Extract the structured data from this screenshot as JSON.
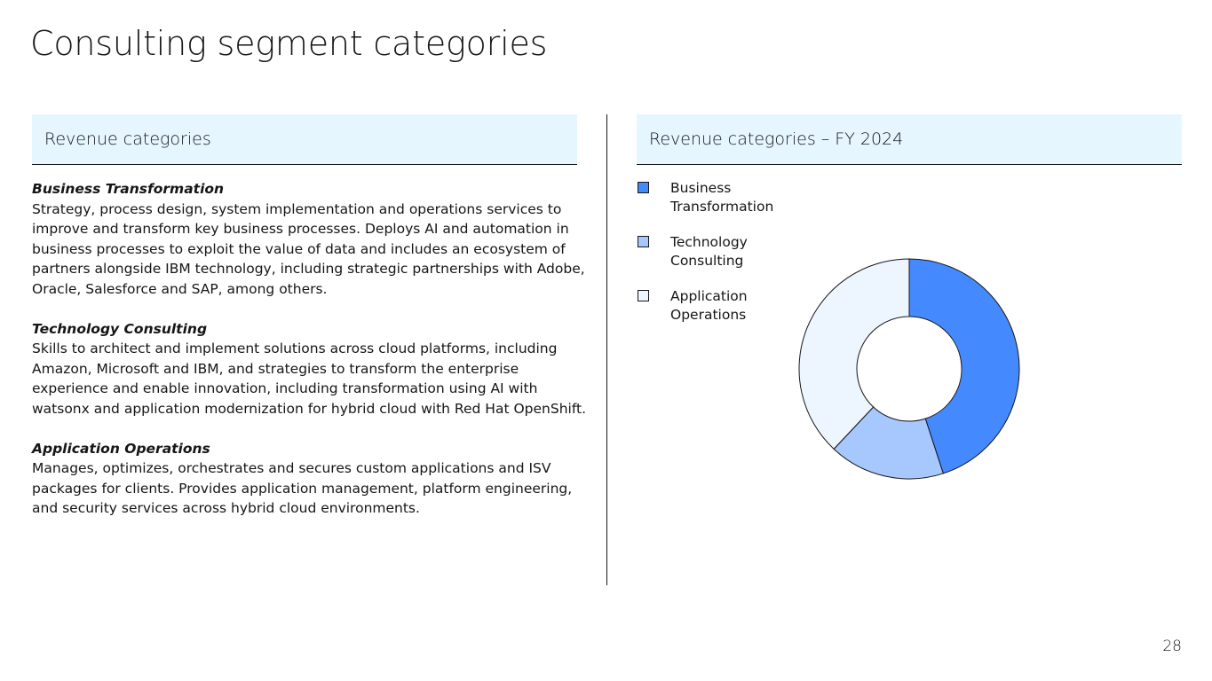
{
  "slide": {
    "title": "Consulting segment categories",
    "page_number": "28"
  },
  "left_panel": {
    "header": "Revenue categories",
    "categories": [
      {
        "name": "Business Transformation",
        "description": "Strategy, process design, system implementation and operations services to improve and transform key business processes. Deploys AI and automation in business processes to exploit the value of data and includes an ecosystem of partners alongside IBM technology, including strategic partnerships with Adobe, Oracle, Salesforce and SAP, among others."
      },
      {
        "name": "Technology Consulting",
        "description": "Skills to architect and implement solutions across cloud platforms, including Amazon, Microsoft and IBM, and strategies to transform the enterprise experience and enable innovation, including transformation using AI with watsonx and application modernization for hybrid cloud with Red Hat OpenShift."
      },
      {
        "name": "Application Operations",
        "description": "Manages, optimizes, orchestrates and secures custom applications and ISV packages for clients. Provides application management, platform engineering, and security services across hybrid cloud environments."
      }
    ]
  },
  "right_panel": {
    "header": "Revenue categories – FY 2024"
  },
  "chart_data": {
    "type": "pie",
    "variant": "donut",
    "title": "Revenue categories – FY 2024",
    "legend_position": "top-left",
    "categories": [
      "Business Transformation",
      "Technology Consulting",
      "Application Operations"
    ],
    "legend_labels": [
      [
        "Business",
        "Transformation"
      ],
      [
        "Technology",
        "Consulting"
      ],
      [
        "Application",
        "Operations"
      ]
    ],
    "values": [
      45,
      17,
      38
    ],
    "unit": "% of revenue (estimated)",
    "colors": [
      "#4589ff",
      "#a6c8ff",
      "#edf5ff"
    ]
  }
}
